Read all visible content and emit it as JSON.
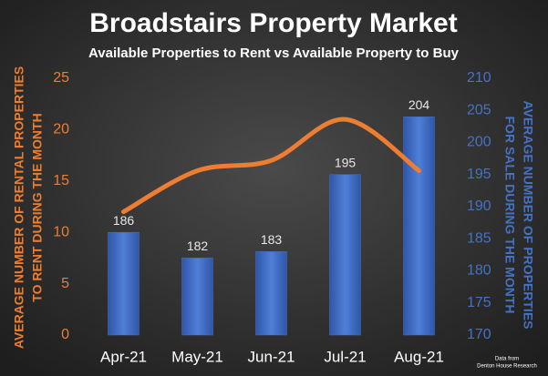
{
  "chart_data": {
    "type": "combo",
    "title": "Broadstairs Property Market",
    "subtitle": "Available Properties to Rent vs Available Property to Buy",
    "ylabel": [
      "AVERAGE NUMBER OF RENTAL PROPERTIES",
      "TO RENT DURING THE MONTH"
    ],
    "y2label": [
      "AVERAGE NUMBER OF PROPERTIES",
      "FOR SALE DURING THE MONTH"
    ],
    "source": [
      "Data from",
      "Denton House Research"
    ],
    "categories": [
      "Apr-21",
      "May-21",
      "Jun-21",
      "Jul-21",
      "Aug-21"
    ],
    "series": [
      {
        "type": "bar",
        "axis": "y2",
        "color": "#4472c4",
        "values": [
          186,
          182,
          183,
          195,
          204
        ]
      },
      {
        "type": "line",
        "color": "#ed7d31",
        "values": [
          12,
          16,
          17,
          21,
          16
        ]
      }
    ],
    "ylim": [
      0,
      25
    ],
    "yticks": [
      0,
      5,
      10,
      15,
      20,
      25
    ],
    "y2lim": [
      170,
      210
    ],
    "y2ticks": [
      170,
      175,
      180,
      185,
      190,
      195,
      200,
      205,
      210
    ],
    "ycolor": "#ed7d31",
    "y2color": "#4472c4"
  }
}
